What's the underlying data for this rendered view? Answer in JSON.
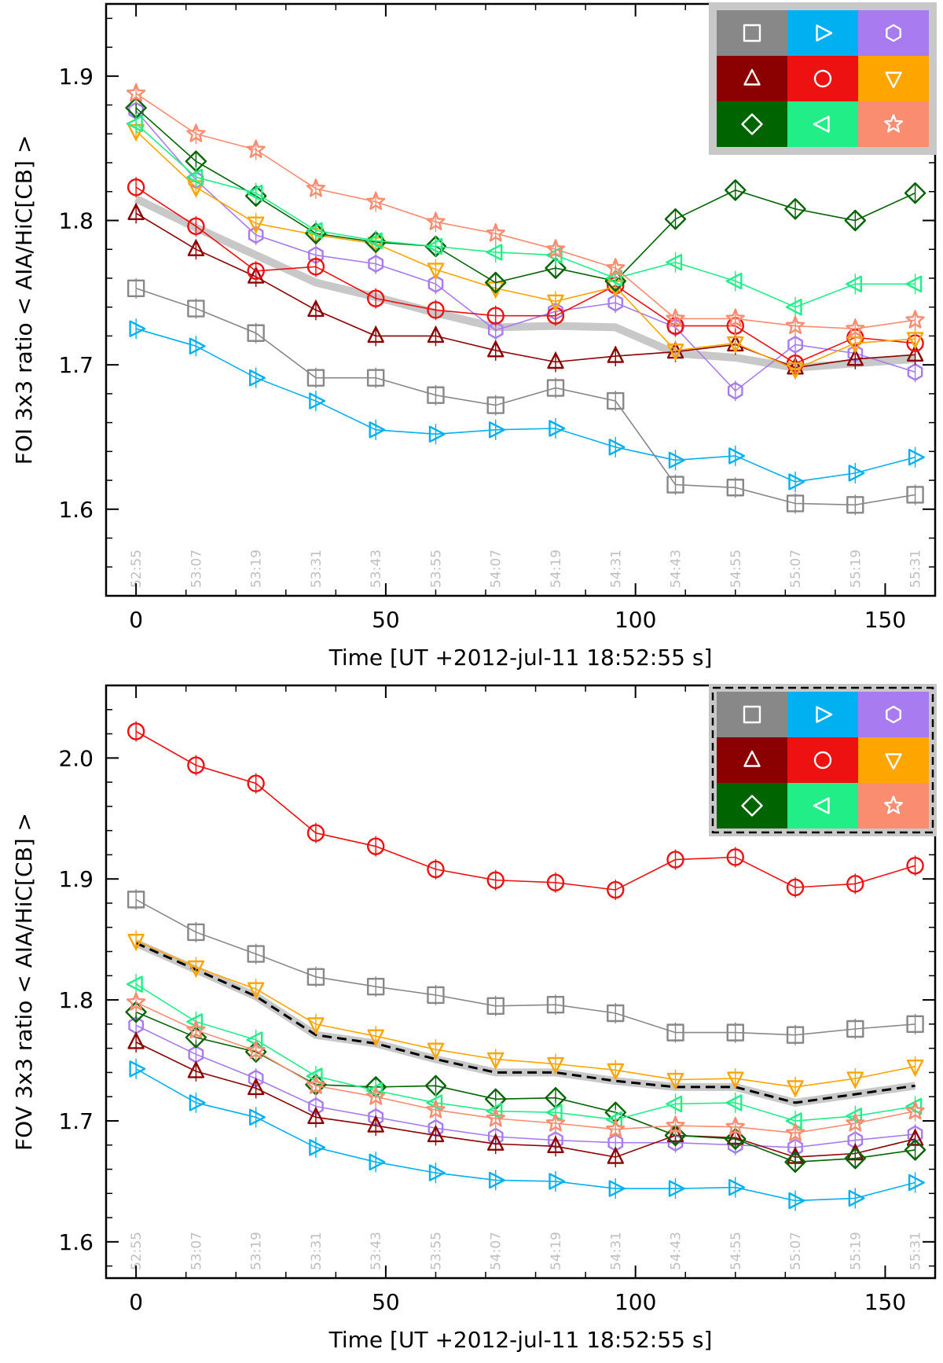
{
  "chart_data": [
    {
      "type": "line",
      "id": "top",
      "xlabel": "Time [UT +2012-jul-11 18:52:55 s]",
      "ylabel": "FOI 3x3 ratio < AIA/HiC[CB] >",
      "xlim": [
        -6,
        160
      ],
      "ylim": [
        1.54,
        1.95
      ],
      "xticks": [
        0,
        50,
        100,
        150
      ],
      "yticks": [
        1.6,
        1.7,
        1.8,
        1.9
      ],
      "yticks_labels": [
        "1.6",
        "1.7",
        "1.8",
        "1.9"
      ],
      "x": [
        0,
        12,
        24,
        36,
        48,
        60,
        72,
        84,
        96,
        108,
        120,
        132,
        144,
        156
      ],
      "time_labels": [
        "52:55",
        "53:07",
        "53:19",
        "53:31",
        "53:43",
        "53:55",
        "54:07",
        "54:19",
        "54:31",
        "54:43",
        "54:55",
        "55:07",
        "55:19",
        "55:31"
      ],
      "reference": {
        "name": "mean",
        "style": "gray-band",
        "color": "#c8c8c8",
        "values": [
          1.815,
          1.795,
          1.776,
          1.757,
          1.747,
          1.736,
          1.726,
          1.727,
          1.726,
          1.708,
          1.705,
          1.698,
          1.701,
          1.704
        ]
      },
      "legend_style": "solid",
      "legend_position": "top-right",
      "series": [
        {
          "name": "square",
          "marker": "square",
          "color": "#888888",
          "values": [
            1.753,
            1.739,
            1.722,
            1.691,
            1.691,
            1.679,
            1.672,
            1.684,
            1.675,
            1.617,
            1.615,
            1.604,
            1.603,
            1.61
          ]
        },
        {
          "name": "triangle-right",
          "marker": "triangle-right",
          "color": "#00b0f0",
          "values": [
            1.725,
            1.713,
            1.691,
            1.675,
            1.655,
            1.652,
            1.655,
            1.656,
            1.643,
            1.634,
            1.637,
            1.619,
            1.625,
            1.636
          ]
        },
        {
          "name": "hexagon",
          "marker": "hexagon",
          "color": "#a87cf0",
          "values": [
            1.876,
            1.828,
            1.79,
            1.776,
            1.77,
            1.756,
            1.724,
            1.737,
            1.743,
            1.726,
            1.682,
            1.714,
            1.708,
            1.695
          ]
        },
        {
          "name": "triangle-up",
          "marker": "triangle-up",
          "color": "#8b0000",
          "values": [
            1.805,
            1.78,
            1.761,
            1.738,
            1.72,
            1.72,
            1.71,
            1.702,
            1.706,
            1.709,
            1.714,
            1.698,
            1.704,
            1.707
          ]
        },
        {
          "name": "circle",
          "marker": "circle",
          "color": "#ee1111",
          "values": [
            1.823,
            1.796,
            1.765,
            1.768,
            1.746,
            1.738,
            1.734,
            1.734,
            1.755,
            1.727,
            1.727,
            1.701,
            1.719,
            1.715
          ]
        },
        {
          "name": "triangle-down",
          "marker": "triangle-down",
          "color": "#ffa500",
          "values": [
            1.862,
            1.823,
            1.798,
            1.79,
            1.784,
            1.766,
            1.753,
            1.744,
            1.754,
            1.71,
            1.715,
            1.697,
            1.715,
            1.718
          ]
        },
        {
          "name": "diamond",
          "marker": "diamond",
          "color": "#006400",
          "values": [
            1.878,
            1.841,
            1.817,
            1.791,
            1.785,
            1.782,
            1.757,
            1.767,
            1.758,
            1.801,
            1.821,
            1.808,
            1.8,
            1.819
          ]
        },
        {
          "name": "triangle-left",
          "marker": "triangle-left",
          "color": "#22ee88",
          "values": [
            1.867,
            1.83,
            1.819,
            1.793,
            1.786,
            1.782,
            1.778,
            1.776,
            1.76,
            1.771,
            1.758,
            1.74,
            1.756,
            1.756
          ]
        },
        {
          "name": "star",
          "marker": "star",
          "color": "#fa8c70",
          "values": [
            1.888,
            1.86,
            1.849,
            1.822,
            1.813,
            1.799,
            1.791,
            1.78,
            1.767,
            1.732,
            1.732,
            1.727,
            1.725,
            1.731
          ]
        }
      ]
    },
    {
      "type": "line",
      "id": "bottom",
      "xlabel": "Time [UT +2012-jul-11 18:52:55 s]",
      "ylabel": "FOV 3x3 ratio < AIA/HiC[CB] >",
      "xlim": [
        -6,
        160
      ],
      "ylim": [
        1.57,
        2.06
      ],
      "xticks": [
        0,
        50,
        100,
        150
      ],
      "yticks": [
        1.6,
        1.7,
        1.8,
        1.9,
        2.0
      ],
      "yticks_labels": [
        "1.6",
        "1.7",
        "1.8",
        "1.9",
        "2.0"
      ],
      "x": [
        0,
        12,
        24,
        36,
        48,
        60,
        72,
        84,
        96,
        108,
        120,
        132,
        144,
        156
      ],
      "time_labels": [
        "52:55",
        "53:07",
        "53:19",
        "53:31",
        "53:43",
        "53:55",
        "54:07",
        "54:19",
        "54:31",
        "54:43",
        "54:55",
        "55:07",
        "55:19",
        "55:31"
      ],
      "reference": {
        "name": "mean",
        "style": "gray-band-dashed",
        "color": "#c8c8c8",
        "values": [
          1.847,
          1.825,
          1.803,
          1.771,
          1.764,
          1.751,
          1.74,
          1.74,
          1.733,
          1.728,
          1.728,
          1.715,
          1.722,
          1.729
        ]
      },
      "legend_style": "dashed",
      "legend_position": "top-right",
      "series": [
        {
          "name": "square",
          "marker": "square",
          "color": "#888888",
          "values": [
            1.883,
            1.856,
            1.838,
            1.819,
            1.811,
            1.804,
            1.795,
            1.796,
            1.789,
            1.773,
            1.773,
            1.771,
            1.776,
            1.78
          ]
        },
        {
          "name": "triangle-right",
          "marker": "triangle-right",
          "color": "#00b0f0",
          "values": [
            1.743,
            1.715,
            1.703,
            1.678,
            1.666,
            1.657,
            1.651,
            1.65,
            1.644,
            1.644,
            1.645,
            1.634,
            1.636,
            1.649
          ]
        },
        {
          "name": "hexagon",
          "marker": "hexagon",
          "color": "#a87cf0",
          "values": [
            1.779,
            1.755,
            1.735,
            1.712,
            1.703,
            1.694,
            1.687,
            1.684,
            1.682,
            1.682,
            1.68,
            1.678,
            1.684,
            1.689
          ]
        },
        {
          "name": "triangle-up",
          "marker": "triangle-up",
          "color": "#8b0000",
          "values": [
            1.765,
            1.741,
            1.727,
            1.703,
            1.696,
            1.688,
            1.681,
            1.679,
            1.67,
            1.688,
            1.686,
            1.67,
            1.673,
            1.685
          ]
        },
        {
          "name": "circle",
          "marker": "circle",
          "color": "#ee1111",
          "values": [
            2.022,
            1.994,
            1.979,
            1.938,
            1.927,
            1.908,
            1.899,
            1.897,
            1.891,
            1.916,
            1.918,
            1.893,
            1.896,
            1.911
          ]
        },
        {
          "name": "triangle-down",
          "marker": "triangle-down",
          "color": "#ffa500",
          "values": [
            1.849,
            1.827,
            1.809,
            1.78,
            1.77,
            1.759,
            1.751,
            1.747,
            1.742,
            1.734,
            1.735,
            1.728,
            1.735,
            1.745
          ]
        },
        {
          "name": "diamond",
          "marker": "diamond",
          "color": "#006400",
          "values": [
            1.79,
            1.769,
            1.757,
            1.73,
            1.728,
            1.729,
            1.718,
            1.719,
            1.707,
            1.688,
            1.685,
            1.666,
            1.669,
            1.676
          ]
        },
        {
          "name": "triangle-left",
          "marker": "triangle-left",
          "color": "#22ee88",
          "values": [
            1.813,
            1.782,
            1.767,
            1.737,
            1.725,
            1.715,
            1.708,
            1.707,
            1.701,
            1.714,
            1.715,
            1.7,
            1.704,
            1.712
          ]
        },
        {
          "name": "star",
          "marker": "star",
          "color": "#fa8c70",
          "values": [
            1.798,
            1.775,
            1.758,
            1.729,
            1.72,
            1.709,
            1.702,
            1.698,
            1.693,
            1.696,
            1.695,
            1.69,
            1.698,
            1.708
          ]
        }
      ]
    }
  ]
}
